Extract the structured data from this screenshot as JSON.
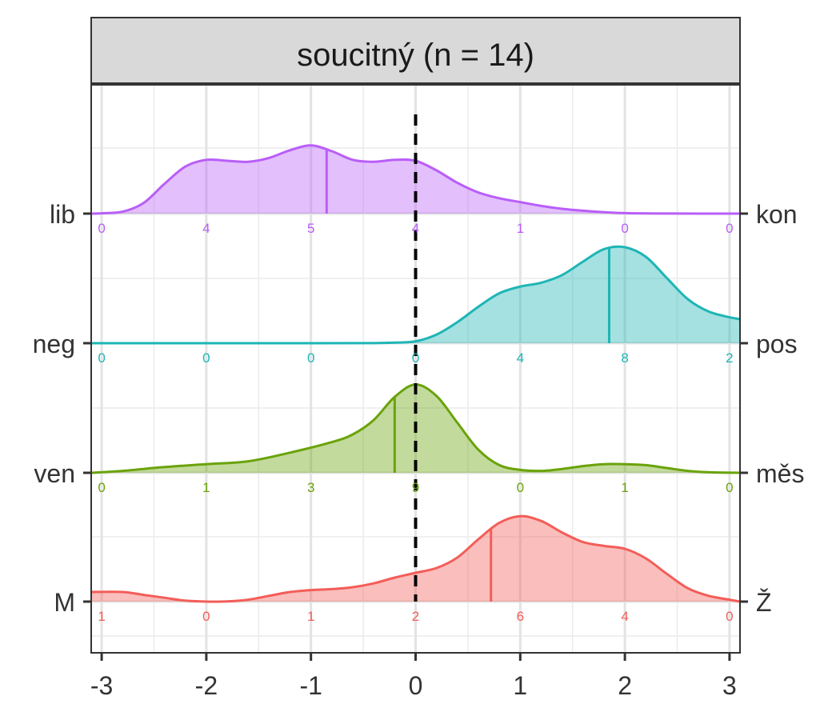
{
  "chart_data": {
    "type": "ridgeline",
    "title": "soucitný (n = 14)",
    "xlabel": "",
    "ylabel": "",
    "xlim": [
      -3.1,
      3.1
    ],
    "x_ticks": [
      "-3",
      "-2",
      "-1",
      "0",
      "1",
      "2",
      "3"
    ],
    "reference_line_x": 0,
    "grid": true,
    "legend": "none",
    "series": [
      {
        "left_label": "lib",
        "right_label": "kon",
        "color": "#b95ef8",
        "median": -0.85,
        "counts": [
          "0",
          "4",
          "5",
          "4",
          "1",
          "0",
          "0"
        ],
        "density": [
          [
            -3.1,
            0.0
          ],
          [
            -3.0,
            0.003
          ],
          [
            -2.8,
            0.02
          ],
          [
            -2.6,
            0.11
          ],
          [
            -2.4,
            0.31
          ],
          [
            -2.2,
            0.49
          ],
          [
            -2.0,
            0.56
          ],
          [
            -1.8,
            0.55
          ],
          [
            -1.6,
            0.54
          ],
          [
            -1.4,
            0.58
          ],
          [
            -1.2,
            0.66
          ],
          [
            -1.0,
            0.71
          ],
          [
            -0.8,
            0.65
          ],
          [
            -0.6,
            0.56
          ],
          [
            -0.4,
            0.54
          ],
          [
            -0.2,
            0.56
          ],
          [
            0.0,
            0.55
          ],
          [
            0.2,
            0.45
          ],
          [
            0.4,
            0.32
          ],
          [
            0.6,
            0.22
          ],
          [
            0.8,
            0.16
          ],
          [
            1.0,
            0.12
          ],
          [
            1.2,
            0.08
          ],
          [
            1.4,
            0.05
          ],
          [
            1.6,
            0.03
          ],
          [
            1.8,
            0.015
          ],
          [
            2.0,
            0.005
          ],
          [
            2.4,
            0.001
          ],
          [
            3.1,
            0.0
          ]
        ]
      },
      {
        "left_label": "neg",
        "right_label": "pos",
        "color": "#1fb5b5",
        "median": 1.85,
        "counts": [
          "0",
          "0",
          "0",
          "0",
          "4",
          "8",
          "2"
        ],
        "density": [
          [
            -3.1,
            0.0
          ],
          [
            -2.0,
            0.0
          ],
          [
            -1.0,
            0.0
          ],
          [
            -0.4,
            0.001
          ],
          [
            -0.2,
            0.006
          ],
          [
            0.0,
            0.02
          ],
          [
            0.2,
            0.09
          ],
          [
            0.4,
            0.22
          ],
          [
            0.6,
            0.38
          ],
          [
            0.8,
            0.52
          ],
          [
            1.0,
            0.59
          ],
          [
            1.2,
            0.63
          ],
          [
            1.4,
            0.71
          ],
          [
            1.6,
            0.85
          ],
          [
            1.8,
            0.98
          ],
          [
            2.0,
            1.0
          ],
          [
            2.2,
            0.9
          ],
          [
            2.4,
            0.68
          ],
          [
            2.6,
            0.46
          ],
          [
            2.8,
            0.33
          ],
          [
            3.0,
            0.27
          ],
          [
            3.1,
            0.25
          ]
        ]
      },
      {
        "left_label": "ven",
        "right_label": "měs",
        "color": "#6aa30a",
        "median": -0.2,
        "counts": [
          "0",
          "1",
          "3",
          "9",
          "0",
          "1",
          "0"
        ],
        "density": [
          [
            -3.1,
            0.0
          ],
          [
            -2.8,
            0.02
          ],
          [
            -2.4,
            0.06
          ],
          [
            -2.0,
            0.09
          ],
          [
            -1.6,
            0.12
          ],
          [
            -1.2,
            0.21
          ],
          [
            -0.8,
            0.32
          ],
          [
            -0.6,
            0.4
          ],
          [
            -0.4,
            0.55
          ],
          [
            -0.2,
            0.79
          ],
          [
            0.0,
            0.92
          ],
          [
            0.2,
            0.8
          ],
          [
            0.4,
            0.52
          ],
          [
            0.6,
            0.24
          ],
          [
            0.8,
            0.08
          ],
          [
            1.0,
            0.03
          ],
          [
            1.2,
            0.02
          ],
          [
            1.4,
            0.04
          ],
          [
            1.6,
            0.07
          ],
          [
            1.8,
            0.09
          ],
          [
            2.0,
            0.09
          ],
          [
            2.2,
            0.08
          ],
          [
            2.4,
            0.05
          ],
          [
            2.6,
            0.02
          ],
          [
            2.8,
            0.006
          ],
          [
            3.1,
            0.0
          ]
        ]
      },
      {
        "left_label": "M",
        "right_label": "Ž",
        "color": "#f35d58",
        "median": 0.72,
        "counts": [
          "1",
          "0",
          "1",
          "2",
          "6",
          "4",
          "0"
        ],
        "density": [
          [
            -3.1,
            0.1
          ],
          [
            -2.8,
            0.1
          ],
          [
            -2.6,
            0.07
          ],
          [
            -2.4,
            0.04
          ],
          [
            -2.2,
            0.01
          ],
          [
            -2.0,
            0.0
          ],
          [
            -1.8,
            0.002
          ],
          [
            -1.6,
            0.02
          ],
          [
            -1.4,
            0.06
          ],
          [
            -1.2,
            0.1
          ],
          [
            -1.0,
            0.12
          ],
          [
            -0.8,
            0.13
          ],
          [
            -0.6,
            0.15
          ],
          [
            -0.4,
            0.19
          ],
          [
            -0.2,
            0.25
          ],
          [
            0.0,
            0.3
          ],
          [
            0.2,
            0.35
          ],
          [
            0.4,
            0.46
          ],
          [
            0.6,
            0.65
          ],
          [
            0.8,
            0.82
          ],
          [
            1.0,
            0.89
          ],
          [
            1.2,
            0.84
          ],
          [
            1.4,
            0.72
          ],
          [
            1.6,
            0.62
          ],
          [
            1.8,
            0.58
          ],
          [
            2.0,
            0.55
          ],
          [
            2.2,
            0.45
          ],
          [
            2.4,
            0.29
          ],
          [
            2.6,
            0.14
          ],
          [
            2.8,
            0.06
          ],
          [
            3.0,
            0.02
          ],
          [
            3.1,
            0.0
          ]
        ]
      }
    ]
  }
}
